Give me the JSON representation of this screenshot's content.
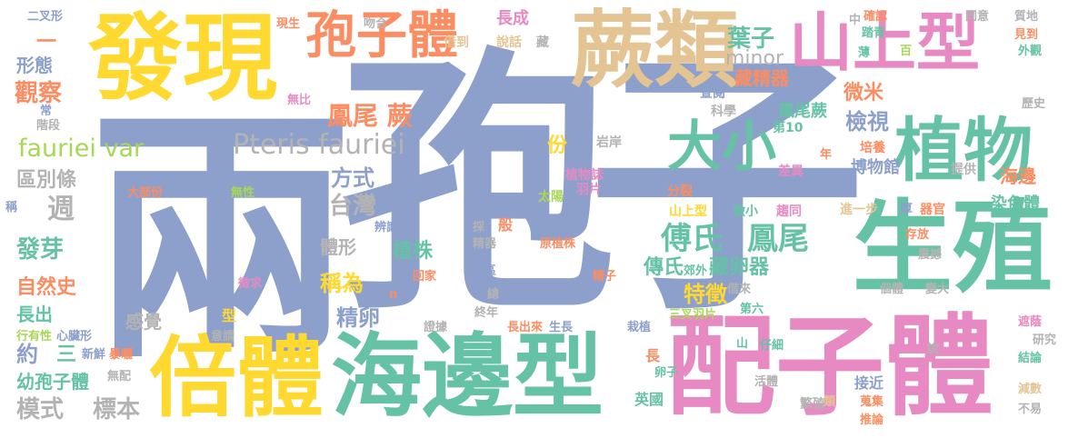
{
  "palette": {
    "blue": "#8da0cb",
    "green": "#66c2a5",
    "orange": "#fc8d62",
    "pink": "#e78ac3",
    "lime": "#a6d854",
    "yellow": "#ffd92f",
    "tan": "#e5c494",
    "gray": "#b3b3b3"
  },
  "words": [
    {
      "text": "孢子",
      "color": "blue"
    },
    {
      "text": "兩",
      "color": "blue"
    },
    {
      "text": "海邊型",
      "color": "green"
    },
    {
      "text": "配子體",
      "color": "pink"
    },
    {
      "text": "發現",
      "color": "yellow"
    },
    {
      "text": "倍體",
      "color": "yellow"
    },
    {
      "text": "生殖",
      "color": "green"
    },
    {
      "text": "蕨類",
      "color": "tan"
    },
    {
      "text": "孢子體",
      "color": "orange"
    },
    {
      "text": "山上型",
      "color": "pink"
    },
    {
      "text": "植物",
      "color": "green"
    },
    {
      "text": "大小",
      "color": "green"
    },
    {
      "text": "Pteris fauriei",
      "color": "gray"
    },
    {
      "text": "fauriei var",
      "color": "lime"
    },
    {
      "text": "鳳尾 蕨",
      "color": "orange"
    },
    {
      "text": "傅氏",
      "color": "green"
    },
    {
      "text": "鳳尾",
      "color": "green"
    },
    {
      "text": "葉子",
      "color": "green"
    },
    {
      "text": "藏精器",
      "color": "orange"
    },
    {
      "text": "minor",
      "color": "gray"
    },
    {
      "text": "檢視",
      "color": "blue"
    },
    {
      "text": "鳳尾蕨",
      "color": "green"
    },
    {
      "text": "微米",
      "color": "orange"
    },
    {
      "text": "觀察",
      "color": "orange"
    },
    {
      "text": "形態",
      "color": "blue"
    },
    {
      "text": "區別條",
      "color": "gray"
    },
    {
      "text": "週",
      "color": "gray"
    },
    {
      "text": "發芽",
      "color": "green"
    },
    {
      "text": "自然史",
      "color": "orange"
    },
    {
      "text": "長出",
      "color": "green"
    },
    {
      "text": "約",
      "color": "blue"
    },
    {
      "text": "三",
      "color": "green"
    },
    {
      "text": "幼孢子體",
      "color": "green"
    },
    {
      "text": "模式",
      "color": "gray"
    },
    {
      "text": "標本",
      "color": "gray"
    },
    {
      "text": "台灣",
      "color": "gray"
    },
    {
      "text": "方式",
      "color": "blue"
    },
    {
      "text": "份",
      "color": "yellow"
    },
    {
      "text": "體形",
      "color": "gray"
    },
    {
      "text": "植株",
      "color": "green"
    },
    {
      "text": "稱為",
      "color": "yellow"
    },
    {
      "text": "精卵",
      "color": "blue"
    },
    {
      "text": "感覺",
      "color": "gray"
    },
    {
      "text": "傳氏",
      "color": "green"
    },
    {
      "text": "藏卵器",
      "color": "green"
    },
    {
      "text": "特徵",
      "color": "yellow"
    },
    {
      "text": "博物館",
      "color": "blue"
    },
    {
      "text": "海邊",
      "color": "orange"
    },
    {
      "text": "染色體",
      "color": "green"
    },
    {
      "text": "長成",
      "color": "pink"
    },
    {
      "text": "說話",
      "color": "tan"
    },
    {
      "text": "借到",
      "color": "tan"
    },
    {
      "text": "查閱",
      "color": "blue"
    },
    {
      "text": "科學",
      "color": "gray"
    },
    {
      "text": "第10",
      "color": "green"
    },
    {
      "text": "岩岸",
      "color": "gray"
    },
    {
      "text": "植物誌",
      "color": "pink"
    },
    {
      "text": "羽片",
      "color": "pink"
    },
    {
      "text": "太陽",
      "color": "lime"
    },
    {
      "text": "分裂",
      "color": "orange"
    },
    {
      "text": "山上型",
      "color": "yellow"
    },
    {
      "text": "微小",
      "color": "green"
    },
    {
      "text": "趨同",
      "color": "pink"
    },
    {
      "text": "進一步",
      "color": "tan"
    },
    {
      "text": "厚",
      "color": "blue"
    },
    {
      "text": "器官",
      "color": "orange"
    },
    {
      "text": "培養",
      "color": "orange"
    },
    {
      "text": "差異",
      "color": "pink"
    },
    {
      "text": "提供",
      "color": "gray"
    },
    {
      "text": "確認",
      "color": "orange"
    },
    {
      "text": "同意",
      "color": "gray"
    },
    {
      "text": "質地",
      "color": "gray"
    },
    {
      "text": "踏青",
      "color": "green"
    },
    {
      "text": "見到",
      "color": "orange"
    },
    {
      "text": "外觀",
      "color": "green"
    },
    {
      "text": "歷史",
      "color": "gray"
    },
    {
      "text": "現生",
      "color": "orange"
    },
    {
      "text": "吻合",
      "color": "gray"
    },
    {
      "text": "二叉形",
      "color": "blue"
    },
    {
      "text": "無比",
      "color": "pink"
    },
    {
      "text": "常",
      "color": "blue"
    },
    {
      "text": "階段",
      "color": "gray"
    },
    {
      "text": "大部份",
      "color": "orange"
    },
    {
      "text": "無性",
      "color": "lime"
    },
    {
      "text": "辨識",
      "color": "blue"
    },
    {
      "text": "精器",
      "color": "gray"
    },
    {
      "text": "原植株",
      "color": "orange"
    },
    {
      "text": "回家",
      "color": "orange"
    },
    {
      "text": "山區",
      "color": "blue"
    },
    {
      "text": "精子",
      "color": "orange"
    },
    {
      "text": "郊外",
      "color": "green"
    },
    {
      "text": "借來",
      "color": "gray"
    },
    {
      "text": "第六",
      "color": "green"
    },
    {
      "text": "個體",
      "color": "gray"
    },
    {
      "text": "存放",
      "color": "orange"
    },
    {
      "text": "震撼",
      "color": "gray"
    },
    {
      "text": "變大",
      "color": "gray"
    },
    {
      "text": "三叉羽片",
      "color": "lime"
    },
    {
      "text": "長出來",
      "color": "orange"
    },
    {
      "text": "生長",
      "color": "blue"
    },
    {
      "text": "終年",
      "color": "gray"
    },
    {
      "text": "總",
      "color": "gray"
    },
    {
      "text": "證據",
      "color": "gray"
    },
    {
      "text": "栽植",
      "color": "blue"
    },
    {
      "text": "仔細",
      "color": "green"
    },
    {
      "text": "卵子",
      "color": "green"
    },
    {
      "text": "接近",
      "color": "blue"
    },
    {
      "text": "英國",
      "color": "green"
    },
    {
      "text": "活體",
      "color": "gray"
    },
    {
      "text": "繁殖",
      "color": "gray"
    },
    {
      "text": "蒐集",
      "color": "orange"
    },
    {
      "text": "推論",
      "color": "orange"
    },
    {
      "text": "結論",
      "color": "green"
    },
    {
      "text": "研究",
      "color": "gray"
    },
    {
      "text": "遮蔭",
      "color": "pink"
    },
    {
      "text": "減數",
      "color": "tan"
    },
    {
      "text": "不易",
      "color": "gray"
    },
    {
      "text": "徵求",
      "color": "pink"
    },
    {
      "text": "行有性",
      "color": "lime"
    },
    {
      "text": "心臟形",
      "color": "blue"
    },
    {
      "text": "新鮮",
      "color": "blue"
    },
    {
      "text": "暴曬",
      "color": "orange"
    },
    {
      "text": "無配",
      "color": "gray"
    },
    {
      "text": "意謂",
      "color": "gray"
    },
    {
      "text": "型",
      "color": "yellow"
    },
    {
      "text": "一",
      "color": "orange"
    },
    {
      "text": "n",
      "color": "orange"
    },
    {
      "text": "稱",
      "color": "blue"
    },
    {
      "text": "般",
      "color": "orange"
    },
    {
      "text": "採",
      "color": "gray"
    },
    {
      "text": "藏",
      "color": "gray"
    },
    {
      "text": "中",
      "color": "gray"
    },
    {
      "text": "薄",
      "color": "green"
    },
    {
      "text": "百",
      "color": "lime"
    },
    {
      "text": "年",
      "color": "orange"
    },
    {
      "text": "說",
      "color": "gray"
    },
    {
      "text": "山",
      "color": "green"
    },
    {
      "text": "類",
      "color": "tan"
    },
    {
      "text": "長",
      "color": "orange"
    }
  ]
}
